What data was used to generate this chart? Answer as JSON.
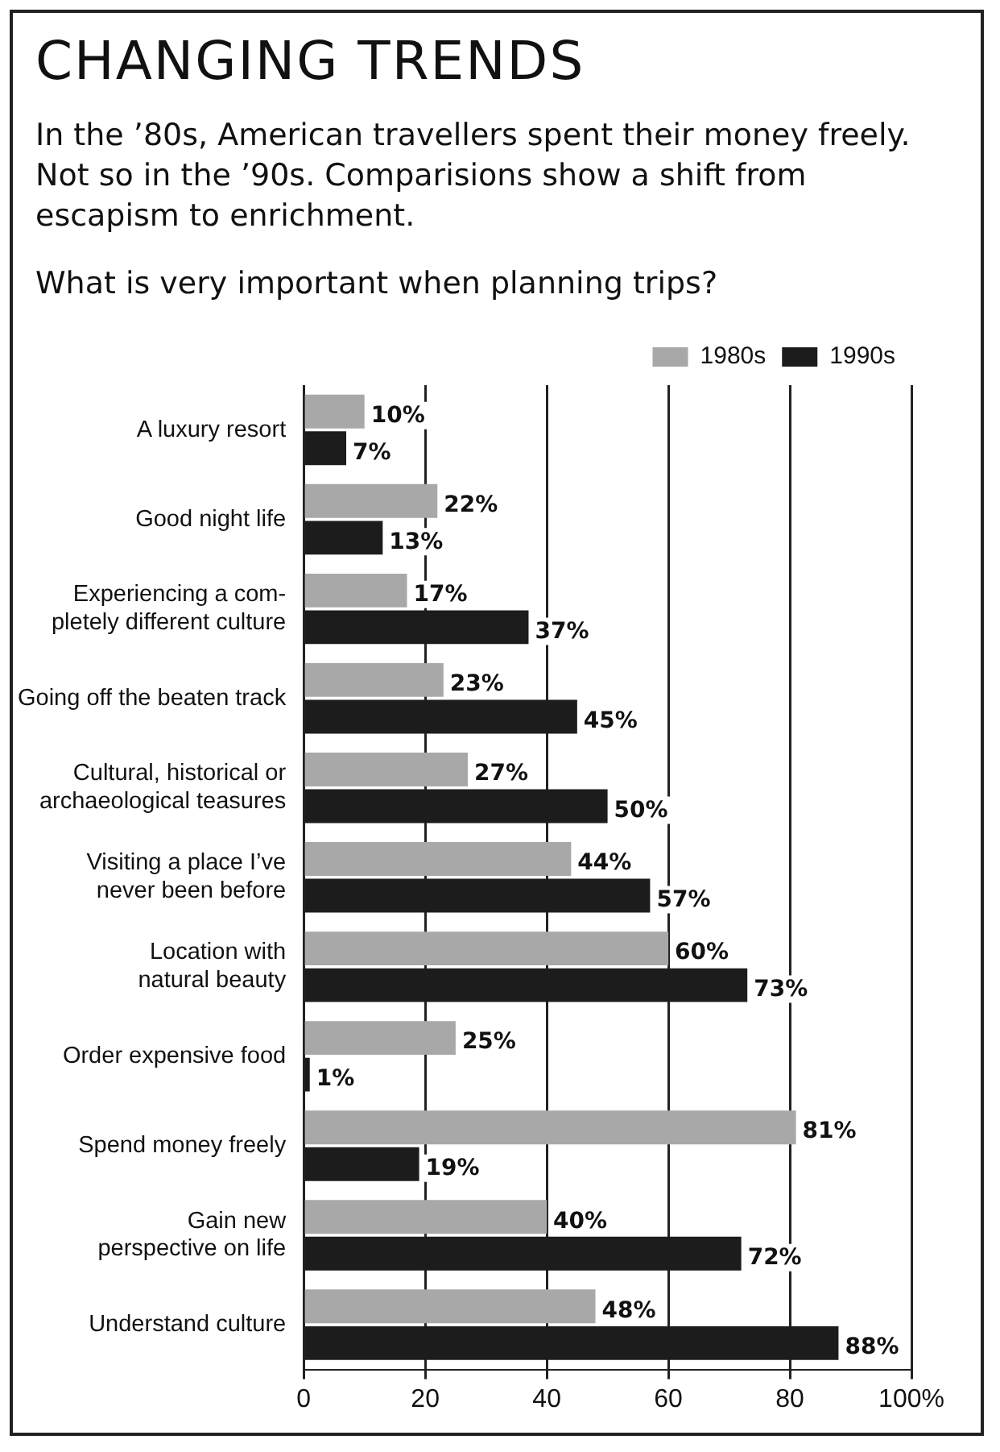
{
  "chart_data": {
    "type": "bar",
    "orientation": "horizontal",
    "title": "CHANGING TRENDS",
    "subtitle": "In the ’80s, American travellers spent their money freely. Not so in the ’90s. Comparisions show a shift from escapism to enrichment.",
    "annotations": [
      "What is very important when planning trips?"
    ],
    "categories": [
      "A luxury resort",
      "Good night life",
      "Experiencing a com-\npletely different culture",
      "Going off the beaten track",
      "Cultural, historical or\narchaeological teasures",
      "Visiting a place I’ve\nnever been before",
      "Location with\nnatural beauty",
      "Order expensive food",
      "Spend money freely",
      "Gain new\nperspective on life",
      "Understand culture"
    ],
    "series": [
      {
        "name": "1980s",
        "color": "#a8a8a8",
        "values": [
          10,
          22,
          17,
          23,
          27,
          44,
          60,
          25,
          81,
          40,
          48
        ],
        "value_labels": [
          "10%",
          "22%",
          "17%",
          "23%",
          "27%",
          "44%",
          "60%",
          "25%",
          "81%",
          "40%",
          "48%"
        ]
      },
      {
        "name": "1990s",
        "color": "#1c1c1c",
        "values": [
          7,
          13,
          37,
          45,
          50,
          57,
          73,
          1,
          19,
          72,
          88
        ],
        "value_labels": [
          "7%",
          "13%",
          "37%",
          "45%",
          "50%",
          "57%",
          "73%",
          "1%",
          "19%",
          "72%",
          "88%"
        ]
      }
    ],
    "xlim": [
      0,
      100
    ],
    "xticks": [
      0,
      20,
      40,
      60,
      80,
      {
        "value": 100,
        "label": "100%"
      }
    ],
    "grid": "x",
    "legend": "top right"
  }
}
